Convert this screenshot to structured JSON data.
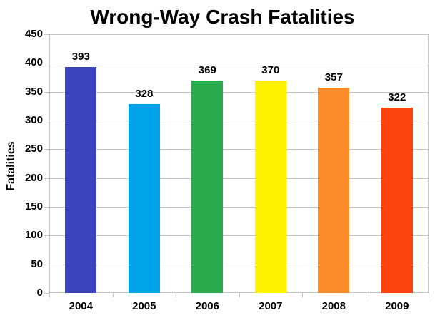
{
  "chart_data": {
    "type": "bar",
    "title": "Wrong-Way Crash Fatalities",
    "categories": [
      "2004",
      "2005",
      "2006",
      "2007",
      "2008",
      "2009"
    ],
    "values": [
      393,
      328,
      369,
      370,
      357,
      322
    ],
    "bar_colors": [
      "#3d43bd",
      "#00a2e8",
      "#2baa4d",
      "#fff200",
      "#f98c28",
      "#fb430f"
    ],
    "xlabel": "",
    "ylabel": "Fatalities",
    "ylim": [
      0,
      450
    ],
    "ytick_step": 50,
    "grid": true,
    "gridline_color": "#c6c6c6",
    "text_color": "#000000",
    "value_labels": true,
    "legend": "none"
  }
}
